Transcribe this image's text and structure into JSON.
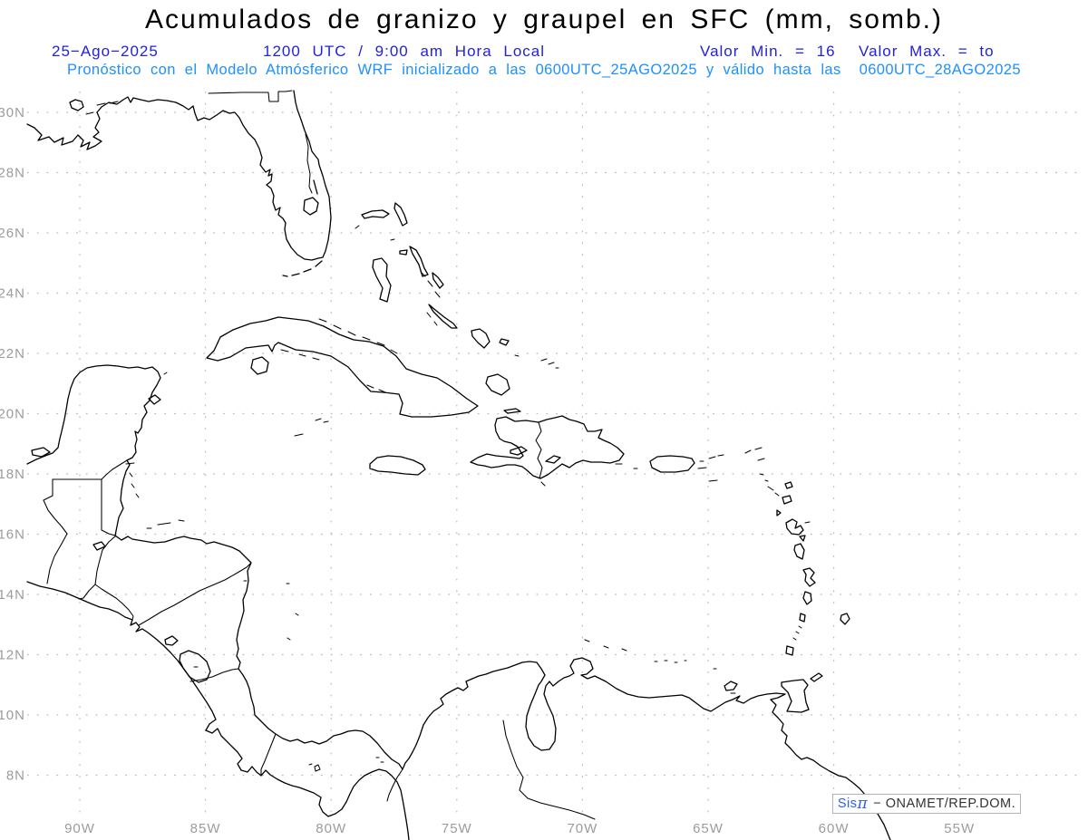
{
  "header": {
    "title": "Acumulados de granizo y graupel en SFC (mm, somb.)",
    "date": "25−Ago−2025",
    "time": "1200 UTC / 9:00 am Hora Local",
    "values": "Valor Min. = 16  Valor Max. = to",
    "model_line": "Pronóstico con el Modelo Atmósferico WRF inicializado a las 0600UTC_25AGO2025 y válido hasta las  0600UTC_28AGO2025"
  },
  "map": {
    "lat_ticks": [
      "30N",
      "28N",
      "26N",
      "24N",
      "22N",
      "20N",
      "18N",
      "16N",
      "14N",
      "12N",
      "10N",
      "8N"
    ],
    "lon_ticks": [
      "90W",
      "85W",
      "80W",
      "75W",
      "70W",
      "65W",
      "60W",
      "55W"
    ]
  },
  "watermark": {
    "brand": "Sis",
    "pi": "π",
    "rest": "− ONAMET/REP.DOM."
  },
  "colors": {
    "title": "#000000",
    "info_line": "#2222dd",
    "model_line": "#1e90ff",
    "axis_labels": "#9c9c9c",
    "gridlines": "#bbbbbb",
    "coastline": "#000000",
    "watermark_brand": "#2b5cff",
    "watermark_text": "#333333"
  }
}
